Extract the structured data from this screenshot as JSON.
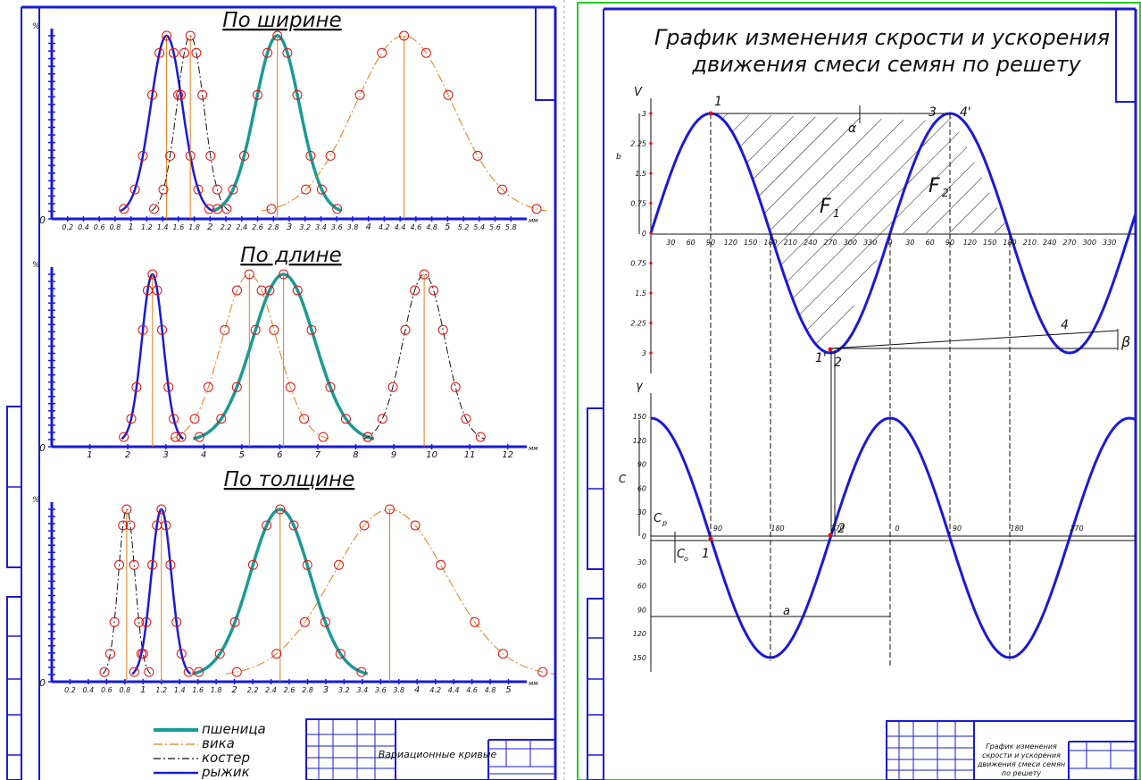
{
  "colors": {
    "frame": "#1a1ad6",
    "wheat": "#1b9a92",
    "vetch": "#e07d1a",
    "koster": "#111111",
    "ryzhik": "#1a1ad6",
    "marker": "#e01010",
    "sheet_border": "#22cc22"
  },
  "left_sheet": {
    "charts": [
      {
        "title": "По ширине",
        "y_unit": "%",
        "x_unit": "мм",
        "origin_label": "0",
        "tick_labels": [
          "0.2",
          "0.4",
          "0.6",
          "0.8",
          "1",
          "1.2",
          "1.4",
          "1.6",
          "1.8",
          "2",
          "2.2",
          "2.4",
          "2.6",
          "2.8",
          "3",
          "3.2",
          "3.4",
          "3.6",
          "3.8",
          "4",
          "4.2",
          "4.4",
          "4.6",
          "4.8",
          "5",
          "5.2",
          "5.4",
          "5.6",
          "5.8"
        ]
      },
      {
        "title": "По длине",
        "y_unit": "%",
        "x_unit": "мм",
        "origin_label": "0",
        "tick_labels": [
          "1",
          "2",
          "3",
          "4",
          "5",
          "6",
          "7",
          "8",
          "9",
          "10",
          "11",
          "12"
        ]
      },
      {
        "title": "По толщине",
        "y_unit": "%",
        "x_unit": "мм",
        "origin_label": "0",
        "tick_labels": [
          "0.2",
          "0.4",
          "0.6",
          "0.8",
          "1",
          "1.2",
          "1.4",
          "1.6",
          "1.8",
          "2",
          "2.2",
          "2.4",
          "2.6",
          "2.8",
          "3",
          "3.2",
          "3.4",
          "3.6",
          "3.8",
          "4",
          "4.2",
          "4.4",
          "4.6",
          "4.8",
          "5"
        ]
      }
    ],
    "legend": [
      {
        "label": "пшеница",
        "key": "wheat"
      },
      {
        "label": "вика",
        "key": "vetch"
      },
      {
        "label": "костер",
        "key": "koster"
      },
      {
        "label": "рыжик",
        "key": "ryzhik"
      }
    ],
    "stamp_title": "Вариационные кривые"
  },
  "right_sheet": {
    "title_line1": "График изменения скрости и ускорения",
    "title_line2": "движения смеси семян по решету",
    "velocity_axis": "V",
    "velocity_ticks_up": [
      "3",
      "2.25",
      "1.5",
      "0.75",
      "0"
    ],
    "velocity_ticks_down": [
      "0.75",
      "1.5",
      "2.25",
      "3"
    ],
    "phase_ticks": [
      "30",
      "60",
      "90",
      "120",
      "150",
      "180",
      "210",
      "240",
      "270",
      "300",
      "330",
      "0",
      "30",
      "60",
      "90",
      "120",
      "150",
      "180",
      "210",
      "240",
      "270",
      "300",
      "330"
    ],
    "accel_axis": "γ",
    "accel_ticks_up": [
      "150",
      "120",
      "90",
      "60",
      "30",
      "0"
    ],
    "accel_ticks_down": [
      "30",
      "60",
      "90",
      "120",
      "150"
    ],
    "accel_phase_ticks": [
      "90",
      "180",
      "270",
      "0",
      "90",
      "180",
      "270"
    ],
    "labels": {
      "p1": "1",
      "p3": "3",
      "p4prime": "4'",
      "p2": "2",
      "p1prime": "1'",
      "p4": "4",
      "alpha": "α",
      "beta": "β",
      "F1": "F",
      "F1sub": "1",
      "F2": "F",
      "F2sub": "2",
      "b": "b",
      "c": "C",
      "cp": "C",
      "cp_sub": "р",
      "co": "C",
      "co_sub": "о",
      "a": "a",
      "acc_p1": "1",
      "acc_p2": "2"
    },
    "stamp_title": "График изменения скрости и ускорения движения смеси семян по решету"
  }
}
